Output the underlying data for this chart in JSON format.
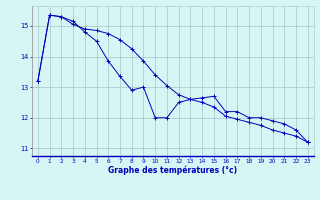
{
  "title": "Graphe des températures (°c)",
  "background_color": "#d8f5f5",
  "grid_color": "#aacece",
  "line_color": "#0000bb",
  "spine_color": "#aaaaaa",
  "xlim": [
    -0.5,
    23.5
  ],
  "ylim": [
    10.75,
    15.65
  ],
  "yticks": [
    11,
    12,
    13,
    14,
    15
  ],
  "xticks": [
    0,
    1,
    2,
    3,
    4,
    5,
    6,
    7,
    8,
    9,
    10,
    11,
    12,
    13,
    14,
    15,
    16,
    17,
    18,
    19,
    20,
    21,
    22,
    23
  ],
  "series1_x": [
    0,
    1,
    2,
    3,
    4,
    5,
    6,
    7,
    8,
    9,
    10,
    11,
    12,
    13,
    14,
    15,
    16,
    17,
    18,
    19,
    20,
    21,
    22,
    23
  ],
  "series1_y": [
    13.2,
    15.35,
    15.3,
    15.15,
    14.8,
    14.5,
    13.85,
    13.35,
    12.9,
    13.0,
    12.0,
    12.0,
    12.5,
    12.6,
    12.65,
    12.7,
    12.2,
    12.2,
    12.0,
    12.0,
    11.9,
    11.8,
    11.6,
    11.2
  ],
  "series2_x": [
    0,
    1,
    2,
    3,
    4,
    5,
    6,
    7,
    8,
    9,
    10,
    11,
    12,
    13,
    14,
    15,
    16,
    17,
    18,
    19,
    20,
    21,
    22,
    23
  ],
  "series2_y": [
    13.2,
    15.35,
    15.3,
    15.05,
    14.9,
    14.85,
    14.75,
    14.55,
    14.25,
    13.85,
    13.4,
    13.05,
    12.75,
    12.6,
    12.5,
    12.35,
    12.05,
    11.95,
    11.85,
    11.75,
    11.6,
    11.5,
    11.4,
    11.2
  ]
}
